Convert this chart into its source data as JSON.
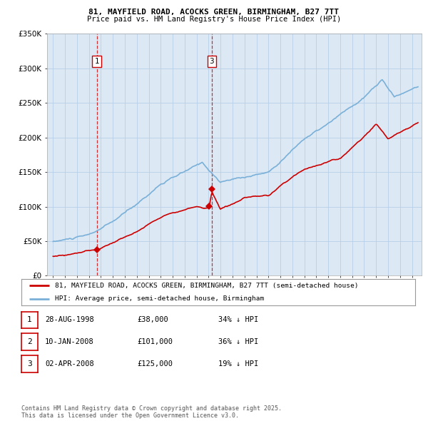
{
  "title_line1": "81, MAYFIELD ROAD, ACOCKS GREEN, BIRMINGHAM, B27 7TT",
  "title_line2": "Price paid vs. HM Land Registry's House Price Index (HPI)",
  "background_color": "#ffffff",
  "plot_bg_color": "#dce9f5",
  "grid_color": "#b8cfe8",
  "hpi_color": "#7ab0d8",
  "price_color": "#cc0000",
  "sale_marker_color": "#cc0000",
  "vlines": [
    1998.66,
    2008.27
  ],
  "sale_points": [
    {
      "year": 1998.66,
      "value": 38000
    },
    {
      "year": 2008.03,
      "value": 101000
    },
    {
      "year": 2008.27,
      "value": 125000
    }
  ],
  "ylim": [
    0,
    350000
  ],
  "yticks": [
    0,
    50000,
    100000,
    150000,
    200000,
    250000,
    300000,
    350000
  ],
  "ytick_labels": [
    "£0",
    "£50K",
    "£100K",
    "£150K",
    "£200K",
    "£250K",
    "£300K",
    "£350K"
  ],
  "xlim": [
    1994.5,
    2025.8
  ],
  "xticks": [
    1995,
    1996,
    1997,
    1998,
    1999,
    2000,
    2001,
    2002,
    2003,
    2004,
    2005,
    2006,
    2007,
    2008,
    2009,
    2010,
    2011,
    2012,
    2013,
    2014,
    2015,
    2016,
    2017,
    2018,
    2019,
    2020,
    2021,
    2022,
    2023,
    2024,
    2025
  ],
  "legend_entries": [
    {
      "label": "81, MAYFIELD ROAD, ACOCKS GREEN, BIRMINGHAM, B27 7TT (semi-detached house)",
      "color": "#cc0000"
    },
    {
      "label": "HPI: Average price, semi-detached house, Birmingham",
      "color": "#7ab0d8"
    }
  ],
  "table_rows": [
    {
      "num": "1",
      "date": "28-AUG-1998",
      "price": "£38,000",
      "hpi": "34% ↓ HPI"
    },
    {
      "num": "2",
      "date": "10-JAN-2008",
      "price": "£101,000",
      "hpi": "36% ↓ HPI"
    },
    {
      "num": "3",
      "date": "02-APR-2008",
      "price": "£125,000",
      "hpi": "19% ↓ HPI"
    }
  ],
  "footnote": "Contains HM Land Registry data © Crown copyright and database right 2025.\nThis data is licensed under the Open Government Licence v3.0.",
  "ann1_label": "1",
  "ann1_year": 1998.66,
  "ann3_label": "3",
  "ann3_year": 2008.27
}
